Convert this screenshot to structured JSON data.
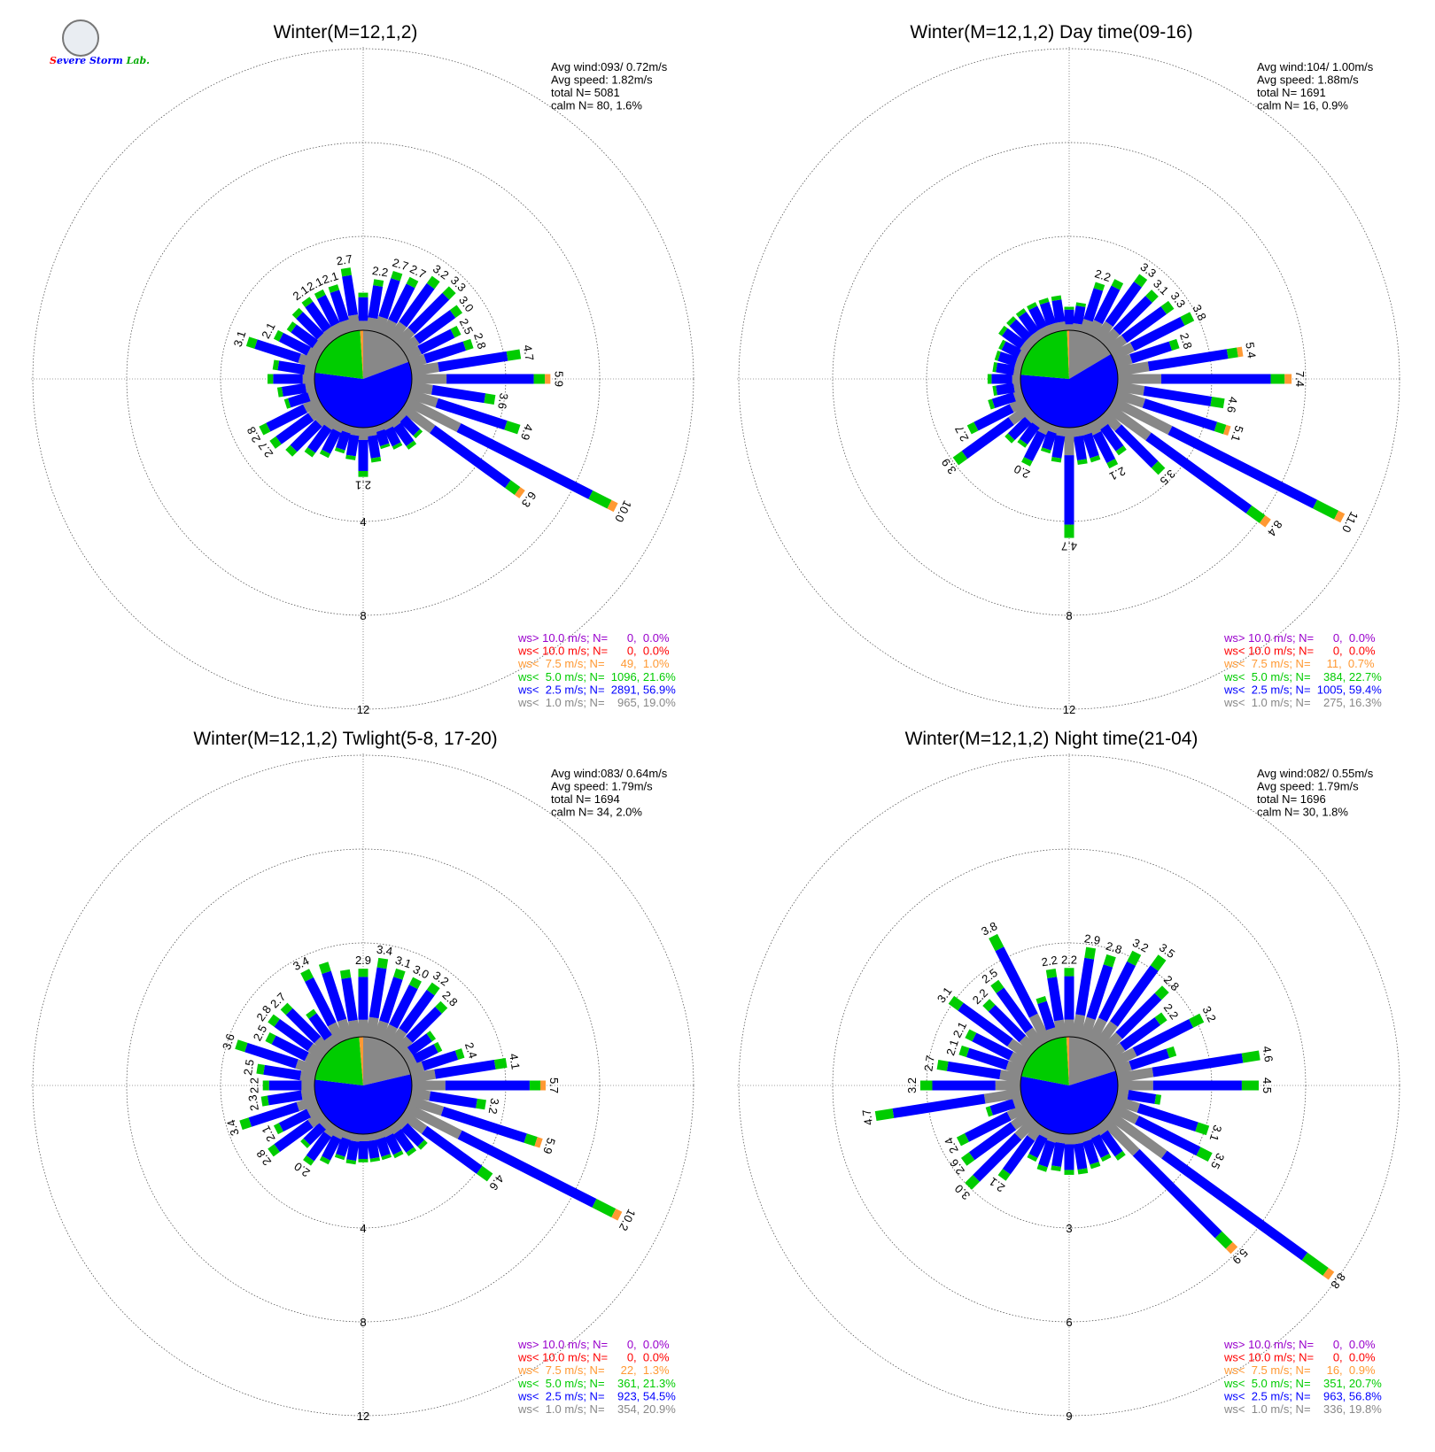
{
  "logo": {
    "text": "SEVERE STORM Lab."
  },
  "colors": {
    "gt10": "#9900cc",
    "lt10": "#ff0000",
    "lt75": "#ff9933",
    "lt5": "#00cc00",
    "lt25": "#0000ff",
    "lt1": "#888888",
    "text": "#000000",
    "grid": "#444444"
  },
  "chart_data": [
    {
      "type": "wind_rose",
      "title": "Winter(M=12,1,2)",
      "stats": [
        "Avg wind:093/ 0.72m/s",
        "Avg speed: 1.82m/s",
        "total N=      5081",
        "calm N=     80,   1.6%"
      ],
      "ring_labels": [
        "4",
        "8",
        "12"
      ],
      "ring_values": [
        4,
        8,
        12
      ],
      "legend": [
        "ws> 10.0 m/s; N=      0,  0.0%",
        "ws< 10.0 m/s; N=      0,  0.0%",
        "ws<  7.5 m/s; N=     49,  1.0%",
        "ws<  5.0 m/s; N=  1096, 21.6%",
        "ws<  2.5 m/s; N=  2891, 56.9%",
        "ws<  1.0 m/s; N=    965, 19.0%"
      ],
      "pie": [
        19.0,
        56.9,
        21.6,
        1.0,
        0.0,
        0.0
      ],
      "totals": [
        1.6,
        2.2,
        2.7,
        2.7,
        3.2,
        3.3,
        3.0,
        2.5,
        2.8,
        4.7,
        5.9,
        3.6,
        4.9,
        10.0,
        6.3,
        1.3,
        1.5,
        1.2,
        1.0,
        1.5,
        2.1,
        1.4,
        1.2,
        1.6,
        1.9,
        2.4,
        2.7,
        2.8,
        1.4,
        1.6,
        2.0,
        1.8,
        3.1,
        2.1,
        1.8,
        2.0,
        2.1,
        2.1,
        2.1,
        2.7
      ],
      "labels": [
        "",
        "2.2",
        "2.7",
        "2.7",
        "3.2",
        "3.3",
        "3.0",
        "2.5",
        "2.8",
        "4.7",
        "5.9",
        "3.6",
        "4.9",
        "10.0",
        "6.3",
        "",
        "",
        "",
        "",
        "",
        "2.1",
        "",
        "",
        "",
        "",
        "",
        "2.7",
        "2.8",
        "",
        "",
        "",
        "",
        "3.1",
        "2.1",
        "",
        "",
        "2.1",
        "2.1",
        "2.1",
        "2.7"
      ]
    },
    {
      "type": "wind_rose",
      "title": "Winter(M=12,1,2) Day time(09-16)",
      "stats": [
        "Avg wind:104/ 1.00m/s",
        "Avg speed: 1.88m/s",
        "total N=      1691",
        "calm N=     16,   0.9%"
      ],
      "ring_labels": [
        "4",
        "8",
        "12"
      ],
      "ring_values": [
        4,
        8,
        12
      ],
      "legend": [
        "ws> 10.0 m/s; N=      0,  0.0%",
        "ws< 10.0 m/s; N=      0,  0.0%",
        "ws<  7.5 m/s; N=     11,  0.7%",
        "ws<  5.0 m/s; N=    384, 22.7%",
        "ws<  2.5 m/s; N=  1005, 59.4%",
        "ws<  1.0 m/s; N=    275, 16.3%"
      ],
      "pie": [
        16.3,
        59.4,
        22.7,
        0.7,
        0.0,
        0.0
      ],
      "totals": [
        1.0,
        1.2,
        2.2,
        2.6,
        3.3,
        3.1,
        3.3,
        3.8,
        2.8,
        5.4,
        7.4,
        4.6,
        5.1,
        11.0,
        8.4,
        3.5,
        1.8,
        2.1,
        1.6,
        1.6,
        4.7,
        1.5,
        1.2,
        2.0,
        1.4,
        1.6,
        3.9,
        2.7,
        1.5,
        1.2,
        1.4,
        1.2,
        1.2,
        1.2,
        1.5,
        1.5,
        1.5,
        1.5,
        1.5,
        1.5
      ],
      "labels": [
        "",
        "",
        "2.2",
        "",
        "3.3",
        "3.1",
        "3.3",
        "3.8",
        "2.8",
        "5.4",
        "7.4",
        "4.6",
        "5.1",
        "11.0",
        "8.4",
        "3.5",
        "",
        "2.1",
        "",
        "",
        "4.7",
        "",
        "",
        "2.0",
        "",
        "",
        "3.9",
        "2.7",
        "",
        "",
        "",
        "",
        "",
        "",
        "",
        "",
        "",
        "",
        "",
        ""
      ]
    },
    {
      "type": "wind_rose",
      "title": "Winter(M=12,1,2) Twlight(5-8, 17-20)",
      "stats": [
        "Avg wind:083/ 0.64m/s",
        "Avg speed: 1.79m/s",
        "total N=      1694",
        "calm N=     34,   2.0%"
      ],
      "ring_labels": [
        "4",
        "8",
        "12"
      ],
      "ring_values": [
        4,
        8,
        12
      ],
      "legend": [
        "ws> 10.0 m/s; N=      0,  0.0%",
        "ws< 10.0 m/s; N=      0,  0.0%",
        "ws<  7.5 m/s; N=     22,  1.3%",
        "ws<  5.0 m/s; N=    361, 21.3%",
        "ws<  2.5 m/s; N=    923, 54.5%",
        "ws<  1.0 m/s; N=    354, 20.9%"
      ],
      "pie": [
        20.9,
        54.5,
        21.3,
        1.3,
        0.0,
        0.0
      ],
      "totals": [
        2.9,
        3.4,
        3.1,
        3.0,
        3.2,
        2.8,
        1.6,
        1.6,
        2.4,
        4.1,
        5.7,
        3.2,
        5.9,
        10.2,
        4.6,
        1.6,
        1.5,
        1.3,
        1.2,
        1.2,
        1.2,
        1.3,
        1.2,
        1.6,
        2.0,
        1.5,
        2.8,
        2.1,
        3.4,
        2.3,
        2.2,
        2.5,
        3.6,
        2.5,
        2.8,
        2.7,
        1.8,
        3.4,
        3.4,
        2.9
      ],
      "labels": [
        "2.9",
        "3.4",
        "3.1",
        "3.0",
        "3.2",
        "2.8",
        "",
        "",
        "2.4",
        "4.1",
        "5.7",
        "3.2",
        "5.9",
        "10.2",
        "4.6",
        "",
        "",
        "",
        "",
        "",
        "",
        "",
        "",
        "",
        "2.0",
        "",
        "2.8",
        "2.1",
        "3.4",
        "2.3",
        "2.2",
        "2.5",
        "3.6",
        "2.5",
        "2.8",
        "2.7",
        "",
        "3.4",
        "",
        ""
      ]
    },
    {
      "type": "wind_rose",
      "title": "Winter(M=12,1,2) Night time(21-04)",
      "stats": [
        "Avg wind:082/ 0.55m/s",
        "Avg speed: 1.79m/s",
        "total N=      1696",
        "calm N=     30,   1.8%"
      ],
      "ring_labels": [
        "3",
        "6",
        "9"
      ],
      "ring_values": [
        3,
        6,
        9
      ],
      "legend": [
        "ws> 10.0 m/s; N=      0,  0.0%",
        "ws< 10.0 m/s; N=      0,  0.0%",
        "ws<  7.5 m/s; N=     16,  0.9%",
        "ws<  5.0 m/s; N=    351, 20.7%",
        "ws<  2.5 m/s; N=    963, 56.8%",
        "ws<  1.0 m/s; N=    336, 19.8%"
      ],
      "pie": [
        19.8,
        56.8,
        20.7,
        0.9,
        0.0,
        0.0
      ],
      "totals": [
        2.2,
        2.9,
        2.8,
        3.2,
        3.5,
        2.8,
        2.2,
        3.2,
        2.0,
        4.6,
        4.5,
        1.4,
        3.1,
        3.5,
        8.8,
        5.9,
        1.3,
        1.1,
        1.2,
        1.3,
        1.3,
        1.2,
        1.3,
        1.1,
        2.1,
        3.0,
        2.6,
        2.4,
        1.2,
        4.7,
        3.2,
        2.7,
        2.1,
        2.1,
        3.1,
        2.2,
        2.5,
        3.8,
        1.4,
        2.2
      ],
      "labels": [
        "2.2",
        "2.9",
        "2.8",
        "3.2",
        "3.5",
        "2.8",
        "2.2",
        "3.2",
        "",
        "4.6",
        "4.5",
        "",
        "3.1",
        "3.5",
        "8.8",
        "5.9",
        "",
        "",
        "",
        "",
        "",
        "",
        "",
        "",
        "2.1",
        "3.0",
        "2.6",
        "2.4",
        "",
        "4.7",
        "3.2",
        "2.7",
        "2.1",
        "2.1",
        "3.1",
        "2.2",
        "2.5",
        "3.8",
        "",
        "2.2"
      ]
    }
  ]
}
